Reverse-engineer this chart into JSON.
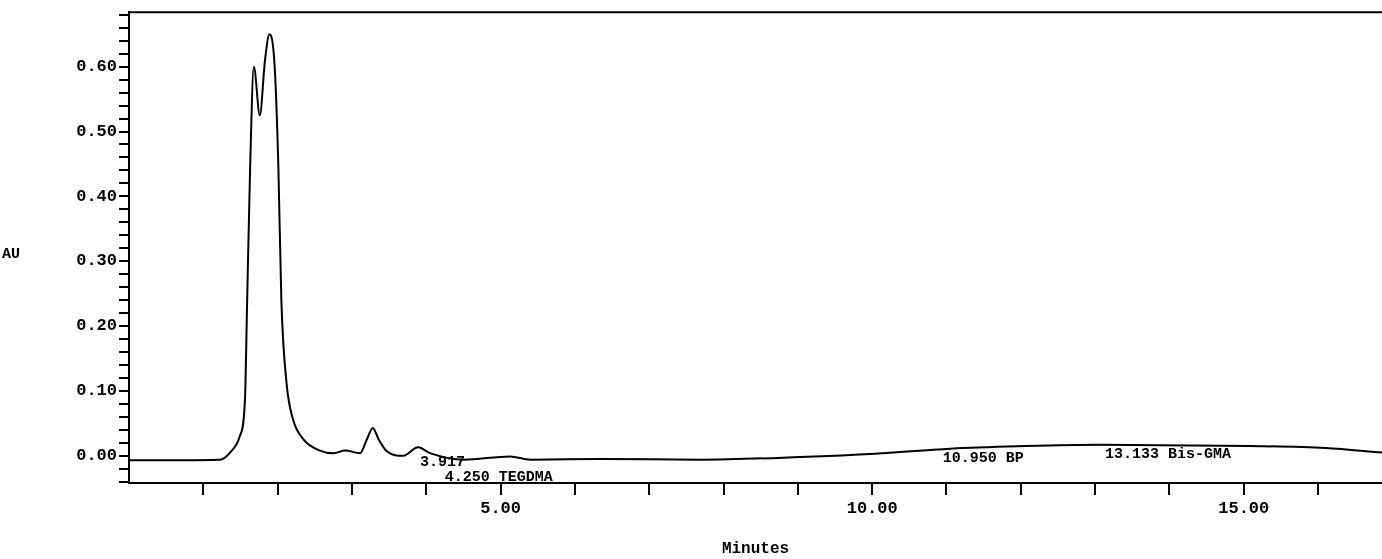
{
  "chart_data": {
    "type": "line",
    "xlabel": "Minutes",
    "ylabel": "AU",
    "x": [
      0,
      1.22,
      1.36,
      1.49,
      1.56,
      1.59,
      1.63,
      1.68,
      1.76,
      1.83,
      1.89,
      1.96,
      2.01,
      2.05,
      2.12,
      2.21,
      2.35,
      2.57,
      2.75,
      2.91,
      3.11,
      3.2,
      3.28,
      3.36,
      3.47,
      3.69,
      3.89,
      4.05,
      4.5,
      5.13,
      5.4,
      6.34,
      7.69,
      9.03,
      10.04,
      11.05,
      12.06,
      13.07,
      15.09,
      16.1,
      16.86
    ],
    "series": [
      {
        "color": "#000000",
        "values": [
          -0.007,
          -0.006,
          0.005,
          0.03,
          0.086,
          0.24,
          0.445,
          0.6,
          0.525,
          0.61,
          0.65,
          0.6,
          0.445,
          0.24,
          0.112,
          0.055,
          0.025,
          0.008,
          0.004,
          0.008,
          0.004,
          0.025,
          0.043,
          0.025,
          0.007,
          0,
          0.013,
          0.004,
          -0.006,
          -0.001,
          -0.006,
          -0.005,
          -0.006,
          -0.002,
          0.003,
          0.011,
          0.015,
          0.017,
          0.015,
          0.012,
          0.005
        ]
      }
    ],
    "xlim": [
      0,
      16.86
    ],
    "xticks": [
      {
        "value": 1,
        "label": null
      },
      {
        "value": 2,
        "label": null
      },
      {
        "value": 3,
        "label": null
      },
      {
        "value": 4,
        "label": null
      },
      {
        "value": 5,
        "label": "5.00"
      },
      {
        "value": 6,
        "label": null
      },
      {
        "value": 7,
        "label": null
      },
      {
        "value": 8,
        "label": null
      },
      {
        "value": 9,
        "label": null
      },
      {
        "value": 10,
        "label": "10.00"
      },
      {
        "value": 11,
        "label": null
      },
      {
        "value": 12,
        "label": null
      },
      {
        "value": 13,
        "label": null
      },
      {
        "value": 14,
        "label": null
      },
      {
        "value": 15,
        "label": "15.00"
      },
      {
        "value": 16,
        "label": null
      }
    ],
    "ylim": [
      -0.042,
      0.684
    ],
    "yticks": [
      {
        "value": -0.04,
        "label": null
      },
      {
        "value": -0.02,
        "label": null
      },
      {
        "value": 0,
        "label": "0.00"
      },
      {
        "value": 0.02,
        "label": null
      },
      {
        "value": 0.04,
        "label": null
      },
      {
        "value": 0.06,
        "label": null
      },
      {
        "value": 0.08,
        "label": null
      },
      {
        "value": 0.1,
        "label": "0.10"
      },
      {
        "value": 0.12,
        "label": null
      },
      {
        "value": 0.14,
        "label": null
      },
      {
        "value": 0.16,
        "label": null
      },
      {
        "value": 0.18,
        "label": null
      },
      {
        "value": 0.2,
        "label": "0.20"
      },
      {
        "value": 0.22,
        "label": null
      },
      {
        "value": 0.24,
        "label": null
      },
      {
        "value": 0.26,
        "label": null
      },
      {
        "value": 0.28,
        "label": null
      },
      {
        "value": 0.3,
        "label": "0.30"
      },
      {
        "value": 0.32,
        "label": null
      },
      {
        "value": 0.34,
        "label": null
      },
      {
        "value": 0.36,
        "label": null
      },
      {
        "value": 0.38,
        "label": null
      },
      {
        "value": 0.4,
        "label": "0.40"
      },
      {
        "value": 0.42,
        "label": null
      },
      {
        "value": 0.44,
        "label": null
      },
      {
        "value": 0.46,
        "label": null
      },
      {
        "value": 0.48,
        "label": null
      },
      {
        "value": 0.5,
        "label": "0.50"
      },
      {
        "value": 0.52,
        "label": null
      },
      {
        "value": 0.54,
        "label": null
      },
      {
        "value": 0.56,
        "label": null
      },
      {
        "value": 0.58,
        "label": null
      },
      {
        "value": 0.6,
        "label": "0.60"
      },
      {
        "value": 0.62,
        "label": null
      },
      {
        "value": 0.64,
        "label": null
      },
      {
        "value": 0.66,
        "label": null
      },
      {
        "value": 0.68,
        "label": null
      }
    ],
    "annotations": [
      {
        "text": "3.917",
        "x": 3.917,
        "y": 0.004
      },
      {
        "text": "4.250 TEGDMA",
        "x": 4.25,
        "y": -0.002
      },
      {
        "text": "10.950 BP",
        "x": 10.95,
        "y": 0.011
      },
      {
        "text": "13.133 Bis-GMA",
        "x": 13.133,
        "y": 0.017
      }
    ],
    "grid": false,
    "legend": false,
    "marker": "none"
  }
}
